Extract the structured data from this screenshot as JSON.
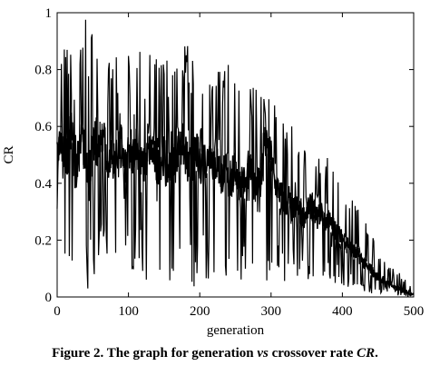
{
  "caption": {
    "prefix": "Figure 2. The graph for generation",
    "vs": "vs",
    "middle": "crossover rate",
    "cr": "CR",
    "suffix": "."
  },
  "chart_data": {
    "type": "line",
    "title": "",
    "xlabel": "generation",
    "ylabel": "CR",
    "xlim": [
      0,
      500
    ],
    "ylim": [
      0,
      1
    ],
    "xticks": [
      0,
      100,
      200,
      300,
      400,
      500
    ],
    "yticks": [
      0,
      0.2,
      0.4,
      0.6,
      0.8,
      1
    ],
    "xtick_labels": [
      "0",
      "100",
      "200",
      "300",
      "400",
      "500"
    ],
    "ytick_labels": [
      "0",
      "0.2",
      "0.4",
      "0.6",
      "0.8",
      "1"
    ],
    "grid": false,
    "line_color": "#000000",
    "series": [
      {
        "x": [
          0,
          5,
          10,
          15,
          20,
          25,
          30,
          35,
          40,
          45,
          50,
          55,
          60,
          65,
          70,
          75,
          80,
          85,
          90,
          95,
          100,
          105,
          110,
          115,
          120,
          125,
          130,
          135,
          140,
          145,
          150,
          155,
          160,
          165,
          170,
          175,
          180,
          185,
          190,
          195,
          200,
          205,
          210,
          215,
          220,
          225,
          230,
          235,
          240,
          245,
          250,
          255,
          260,
          265,
          270,
          275,
          280,
          285,
          290,
          295,
          300,
          305,
          310,
          315,
          320,
          325,
          330,
          335,
          340,
          345,
          350,
          355,
          360,
          365,
          370,
          375,
          380,
          385,
          390,
          395,
          400,
          405,
          410,
          415,
          420,
          425,
          430,
          435,
          440,
          445,
          450,
          455,
          460,
          465,
          470,
          475,
          480,
          485,
          490,
          495,
          500
        ],
        "high": [
          0.85,
          0.95,
          0.9,
          0.88,
          0.92,
          0.8,
          0.85,
          0.98,
          1.0,
          0.9,
          0.95,
          1.0,
          0.85,
          0.9,
          0.8,
          0.85,
          0.88,
          0.82,
          0.9,
          0.8,
          0.86,
          0.84,
          0.9,
          0.87,
          0.85,
          0.82,
          0.88,
          0.8,
          0.85,
          0.83,
          0.9,
          0.85,
          0.8,
          0.85,
          0.88,
          0.9,
          0.95,
          0.9,
          0.85,
          0.88,
          0.85,
          0.82,
          0.86,
          0.9,
          0.84,
          0.85,
          0.8,
          0.82,
          0.85,
          0.8,
          0.82,
          0.78,
          0.8,
          0.78,
          0.8,
          0.75,
          0.78,
          0.75,
          0.72,
          0.7,
          0.72,
          0.68,
          0.66,
          0.65,
          0.62,
          0.6,
          0.6,
          0.58,
          0.55,
          0.56,
          0.52,
          0.54,
          0.5,
          0.52,
          0.5,
          0.48,
          0.5,
          0.46,
          0.45,
          0.44,
          0.42,
          0.4,
          0.38,
          0.36,
          0.34,
          0.32,
          0.28,
          0.26,
          0.24,
          0.2,
          0.18,
          0.16,
          0.14,
          0.12,
          0.1,
          0.1,
          0.09,
          0.08,
          0.06,
          0.04,
          0.03
        ],
        "low": [
          0.2,
          0.38,
          0.05,
          0.1,
          0.08,
          0.05,
          0.15,
          0.1,
          0.04,
          0.0,
          0.1,
          0.05,
          0.06,
          0.1,
          0.04,
          0.12,
          0.08,
          0.15,
          0.1,
          0.06,
          0.1,
          0.08,
          0.12,
          0.1,
          0.08,
          0.06,
          0.1,
          0.02,
          0.08,
          0.05,
          0.1,
          0.0,
          0.06,
          0.08,
          0.02,
          0.1,
          0.05,
          0.02,
          0.0,
          0.08,
          0.06,
          0.1,
          0.04,
          0.08,
          0.06,
          0.1,
          0.05,
          0.08,
          0.06,
          0.04,
          0.1,
          0.06,
          0.05,
          0.08,
          0.06,
          0.08,
          0.06,
          0.1,
          0.04,
          0.0,
          0.06,
          0.05,
          0.08,
          0.06,
          0.05,
          0.04,
          0.1,
          0.06,
          0.05,
          0.08,
          0.05,
          0.06,
          0.04,
          0.05,
          0.06,
          0.04,
          0.05,
          0.03,
          0.04,
          0.04,
          0.03,
          0.04,
          0.03,
          0.02,
          0.03,
          0.02,
          0.02,
          0.02,
          0.01,
          0.02,
          0.01,
          0.01,
          0.01,
          0.01,
          0.0,
          0.01,
          0.0,
          0.0,
          0.0,
          0.0,
          0.0
        ],
        "center": [
          0.5,
          0.55,
          0.52,
          0.48,
          0.6,
          0.45,
          0.5,
          0.55,
          0.5,
          0.45,
          0.52,
          0.55,
          0.5,
          0.6,
          0.45,
          0.5,
          0.48,
          0.5,
          0.55,
          0.45,
          0.5,
          0.48,
          0.55,
          0.5,
          0.45,
          0.48,
          0.52,
          0.5,
          0.45,
          0.48,
          0.5,
          0.45,
          0.48,
          0.5,
          0.52,
          0.55,
          0.5,
          0.45,
          0.48,
          0.52,
          0.45,
          0.5,
          0.48,
          0.52,
          0.45,
          0.48,
          0.42,
          0.45,
          0.4,
          0.42,
          0.45,
          0.4,
          0.42,
          0.38,
          0.45,
          0.4,
          0.42,
          0.4,
          0.55,
          0.52,
          0.5,
          0.4,
          0.38,
          0.35,
          0.32,
          0.35,
          0.3,
          0.32,
          0.3,
          0.28,
          0.3,
          0.32,
          0.3,
          0.28,
          0.3,
          0.26,
          0.28,
          0.25,
          0.24,
          0.22,
          0.2,
          0.2,
          0.18,
          0.16,
          0.15,
          0.14,
          0.12,
          0.1,
          0.1,
          0.08,
          0.07,
          0.06,
          0.05,
          0.05,
          0.04,
          0.03,
          0.03,
          0.02,
          0.02,
          0.01,
          0.01
        ]
      }
    ]
  }
}
